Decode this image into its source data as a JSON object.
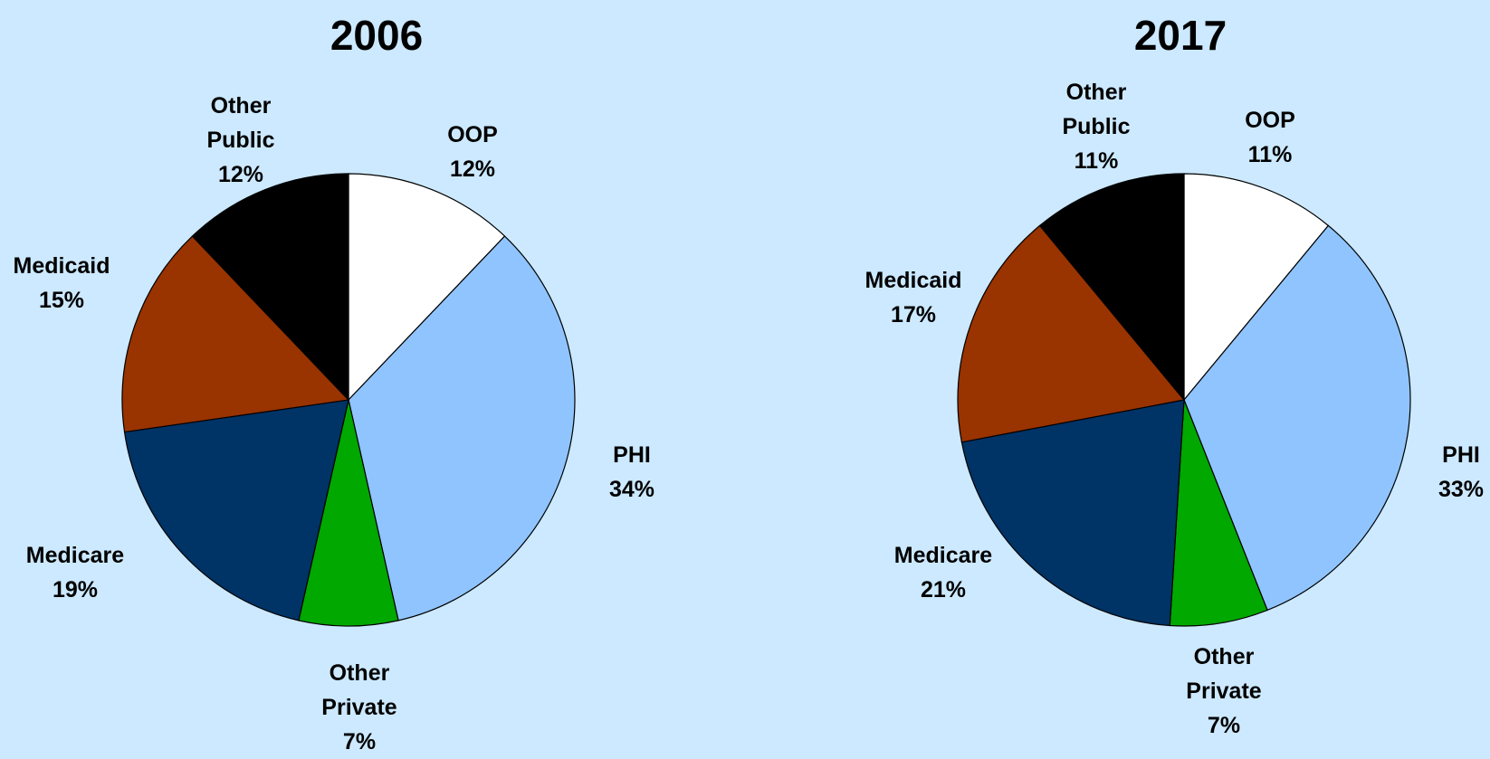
{
  "chart_data": [
    {
      "type": "pie",
      "title": "2006",
      "categories": [
        "OOP",
        "PHI",
        "Other Private",
        "Medicare",
        "Medicaid",
        "Other Public"
      ],
      "values": [
        12,
        34,
        7,
        19,
        15,
        12
      ],
      "value_labels": [
        "12%",
        "34%",
        "7%",
        "19%",
        "15%",
        "12%"
      ],
      "colors": [
        "#ffffff",
        "#90c4ff",
        "#00a800",
        "#003366",
        "#993300",
        "#000000"
      ]
    },
    {
      "type": "pie",
      "title": "2017",
      "categories": [
        "OOP",
        "PHI",
        "Other Private",
        "Medicare",
        "Medicaid",
        "Other Public"
      ],
      "values": [
        11,
        33,
        7,
        21,
        17,
        11
      ],
      "value_labels": [
        "11%",
        "33%",
        "7%",
        "21%",
        "17%",
        "11%"
      ],
      "colors": [
        "#ffffff",
        "#90c4ff",
        "#00a800",
        "#003366",
        "#993300",
        "#000000"
      ]
    }
  ]
}
